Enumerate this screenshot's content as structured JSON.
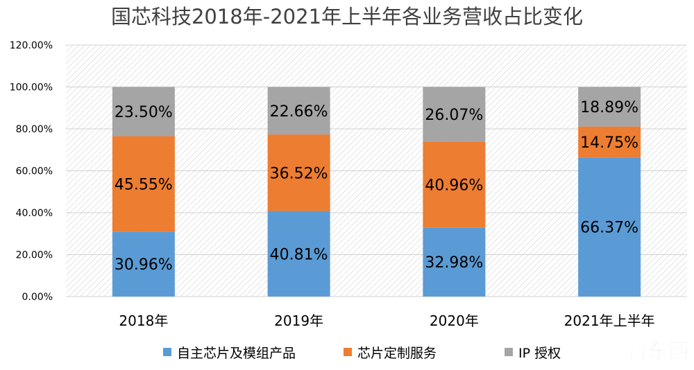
{
  "chart_data": {
    "type": "bar",
    "stacked": true,
    "title": "国芯科技2018年-2021年上半年各业务营收占比变化",
    "categories": [
      "2018年",
      "2019年",
      "2020年",
      "2021年上半年"
    ],
    "series": [
      {
        "name": "自主芯片及模组产品",
        "color": "#5b9bd5",
        "values": [
          30.96,
          40.81,
          32.98,
          66.37
        ],
        "labels": [
          "30.96%",
          "40.81%",
          "32.98%",
          "66.37%"
        ]
      },
      {
        "name": "芯片定制服务",
        "color": "#ed7d31",
        "values": [
          45.55,
          36.52,
          40.96,
          14.75
        ],
        "labels": [
          "45.55%",
          "36.52%",
          "40.96%",
          "14.75%"
        ]
      },
      {
        "name": "IP 授权",
        "color": "#a5a5a5",
        "values": [
          23.5,
          22.66,
          26.07,
          18.89
        ],
        "labels": [
          "23.50%",
          "22.66%",
          "26.07%",
          "18.89%"
        ]
      }
    ],
    "ylim": [
      0,
      120
    ],
    "yticks": [
      0,
      20,
      40,
      60,
      80,
      100,
      120
    ],
    "ytick_labels": [
      "0.00%",
      "20.00%",
      "40.00%",
      "60.00%",
      "80.00%",
      "100.00%",
      "120.00%"
    ],
    "xlabel": "",
    "ylabel": "",
    "legend_position": "bottom",
    "grid": true
  },
  "watermark": "智东西"
}
